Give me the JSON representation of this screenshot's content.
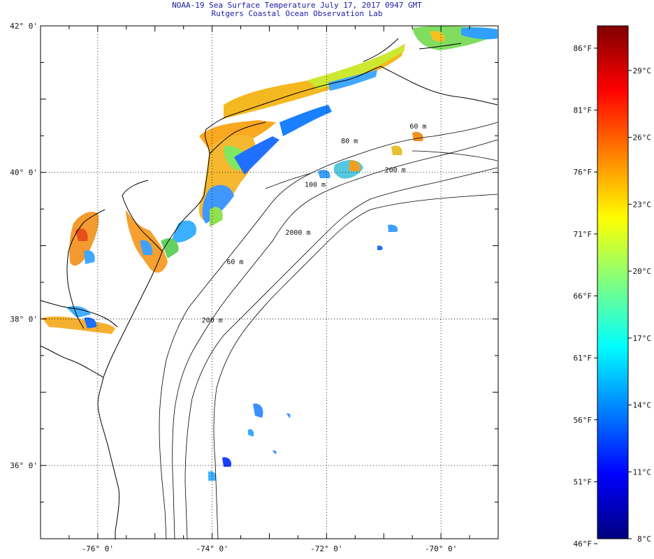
{
  "header": {
    "title": "NOAA-19 Sea Surface Temperature July 17, 2017 0947 GMT",
    "subtitle": "Rutgers Coastal Ocean Observation Lab"
  },
  "map": {
    "lat_labels": [
      {
        "value": 42,
        "text": "42° 0'"
      },
      {
        "value": 40,
        "text": "40° 0'"
      },
      {
        "value": 38,
        "text": "38° 0'"
      },
      {
        "value": 36,
        "text": "36° 0'"
      }
    ],
    "lon_labels": [
      {
        "value": -76,
        "text": "-76° 0'"
      },
      {
        "value": -74,
        "text": "-74° 0'"
      },
      {
        "value": -72,
        "text": "-72° 0'"
      },
      {
        "value": -70,
        "text": "-70° 0'"
      }
    ],
    "extent": {
      "lon": [
        -77,
        -69
      ],
      "lat": [
        35,
        42
      ]
    },
    "isobath_labels": [
      {
        "text": "60 m",
        "lon": -70.4,
        "lat": 40.6
      },
      {
        "text": "80 m",
        "lon": -71.6,
        "lat": 40.4
      },
      {
        "text": "200 m",
        "lon": -70.8,
        "lat": 40.0
      },
      {
        "text": "100 m",
        "lon": -72.2,
        "lat": 39.8
      },
      {
        "text": "2000 m",
        "lon": -72.5,
        "lat": 39.15
      },
      {
        "text": "60 m",
        "lon": -73.6,
        "lat": 38.75
      },
      {
        "text": "200 m",
        "lon": -74.0,
        "lat": 37.95
      }
    ]
  },
  "colorbar": {
    "range_c": [
      8,
      31
    ],
    "colors": [
      "#00007f",
      "#0000ff",
      "#0080ff",
      "#00ffff",
      "#80ff80",
      "#ffff00",
      "#ff8000",
      "#ff0000",
      "#7f0000"
    ],
    "fahrenheit_labels": [
      {
        "value": 46,
        "text": "46°F"
      },
      {
        "value": 51,
        "text": "51°F"
      },
      {
        "value": 56,
        "text": "56°F"
      },
      {
        "value": 61,
        "text": "61°F"
      },
      {
        "value": 66,
        "text": "66°F"
      },
      {
        "value": 71,
        "text": "71°F"
      },
      {
        "value": 76,
        "text": "76°F"
      },
      {
        "value": 81,
        "text": "81°F"
      },
      {
        "value": 86,
        "text": "86°F"
      }
    ],
    "celsius_labels": [
      {
        "value": 8,
        "text": "8°C"
      },
      {
        "value": 11,
        "text": "11°C"
      },
      {
        "value": 14,
        "text": "14°C"
      },
      {
        "value": 17,
        "text": "17°C"
      },
      {
        "value": 20,
        "text": "20°C"
      },
      {
        "value": 23,
        "text": "23°C"
      },
      {
        "value": 26,
        "text": "26°C"
      },
      {
        "value": 29,
        "text": "29°C"
      }
    ]
  }
}
